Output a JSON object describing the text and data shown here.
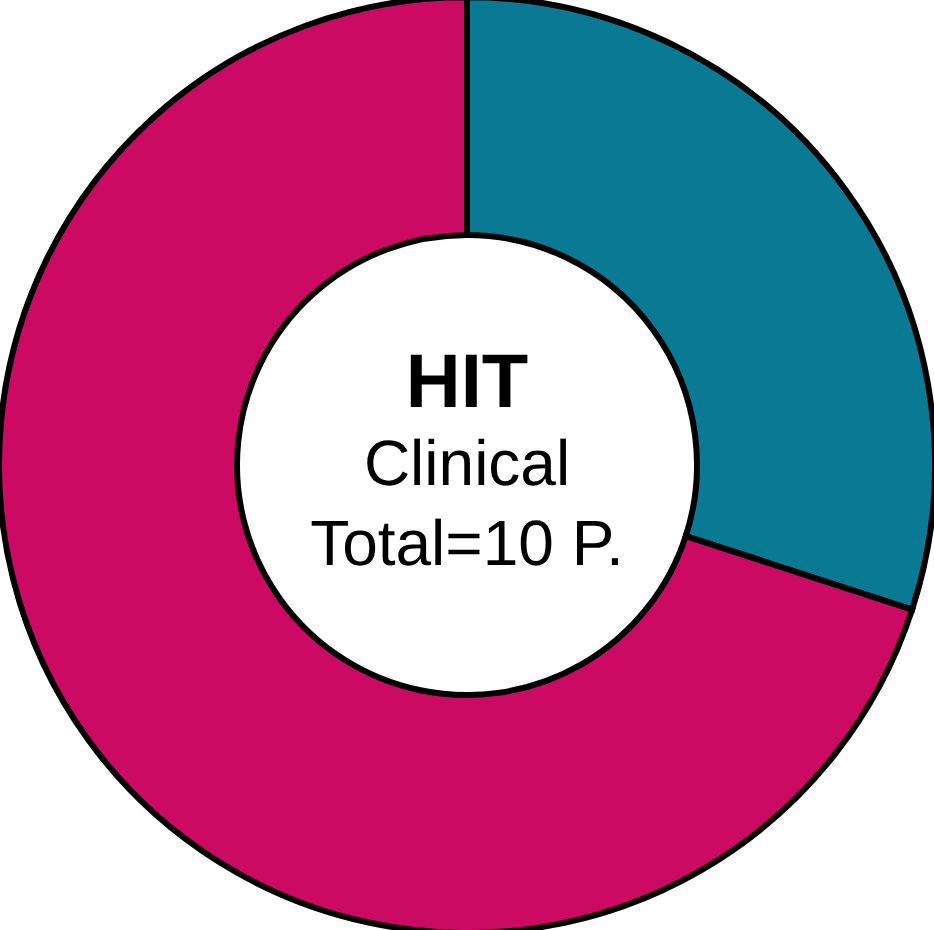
{
  "chart_data": {
    "type": "donut",
    "title": "HIT",
    "annotations": [
      "Clinical",
      "Total=10 P."
    ],
    "categories": [
      null,
      null
    ],
    "values": [
      30,
      70
    ],
    "colors": [
      "#0a7a94",
      "#cc0a64"
    ]
  }
}
